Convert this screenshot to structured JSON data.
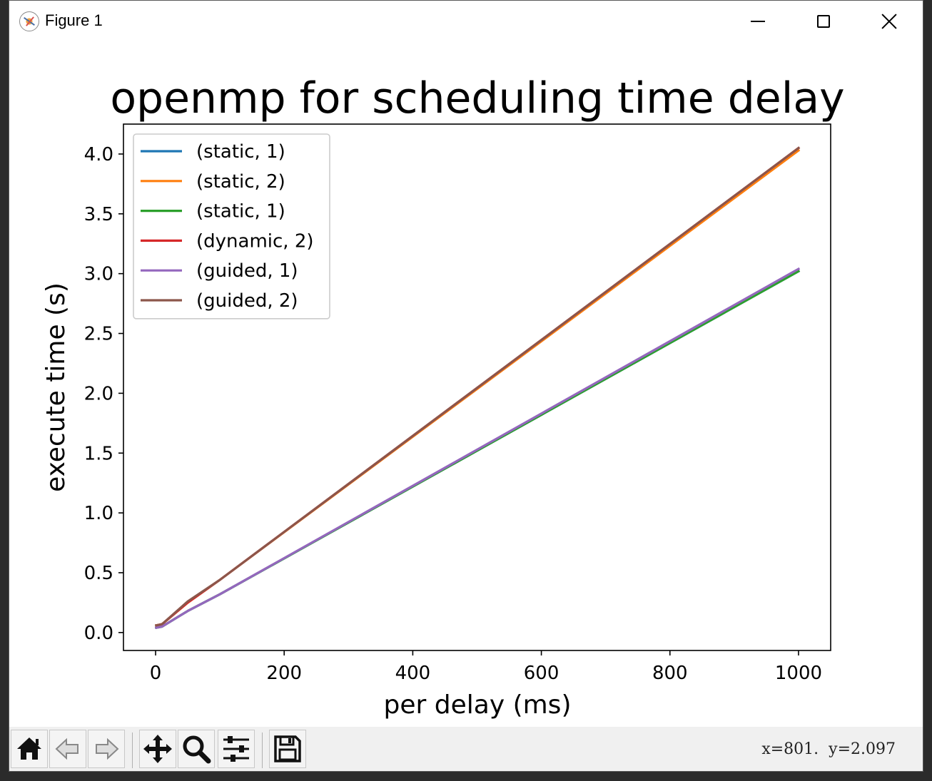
{
  "window": {
    "title": "Figure 1"
  },
  "toolbar": {
    "coords": "x=801.  y=2.097",
    "buttons": [
      "home-icon",
      "back-icon",
      "forward-icon",
      "pan-icon",
      "zoom-icon",
      "configure-icon",
      "save-icon"
    ]
  },
  "colors": {
    "blue": "#1f77b4",
    "orange": "#ff7f0e",
    "green": "#2ca02c",
    "red": "#d62728",
    "purple": "#9467bd",
    "brown": "#8c564b"
  },
  "chart_data": {
    "type": "line",
    "title": "openmp for scheduling time delay",
    "xlabel": "per delay (ms)",
    "ylabel": "execute time (s)",
    "xlim": [
      -50,
      1050
    ],
    "ylim": [
      -0.15,
      4.25
    ],
    "xticks": [
      0,
      200,
      400,
      600,
      800,
      1000
    ],
    "yticks": [
      0.0,
      0.5,
      1.0,
      1.5,
      2.0,
      2.5,
      3.0,
      3.5,
      4.0
    ],
    "xtick_labels": [
      "0",
      "200",
      "400",
      "600",
      "800",
      "1000"
    ],
    "ytick_labels": [
      "0.0",
      "0.5",
      "1.0",
      "1.5",
      "2.0",
      "2.5",
      "3.0",
      "3.5",
      "4.0"
    ],
    "legend_position": "top-left",
    "grid": false,
    "x": [
      1,
      10,
      50,
      100,
      1000
    ],
    "series": [
      {
        "name": "(static, 1)",
        "color": "#1f77b4",
        "values": [
          0.04,
          0.05,
          0.18,
          0.32,
          3.02
        ]
      },
      {
        "name": "(static, 2)",
        "color": "#ff7f0e",
        "values": [
          0.06,
          0.07,
          0.25,
          0.44,
          4.03
        ]
      },
      {
        "name": "(static, 1)",
        "color": "#2ca02c",
        "values": [
          0.04,
          0.05,
          0.18,
          0.32,
          3.02
        ]
      },
      {
        "name": "(dynamic, 2)",
        "color": "#d62728",
        "values": [
          0.06,
          0.07,
          0.25,
          0.44,
          4.05
        ]
      },
      {
        "name": "(guided, 1)",
        "color": "#9467bd",
        "values": [
          0.04,
          0.05,
          0.18,
          0.32,
          3.04
        ]
      },
      {
        "name": "(guided, 2)",
        "color": "#8c564b",
        "values": [
          0.06,
          0.07,
          0.26,
          0.44,
          4.05
        ]
      }
    ]
  }
}
